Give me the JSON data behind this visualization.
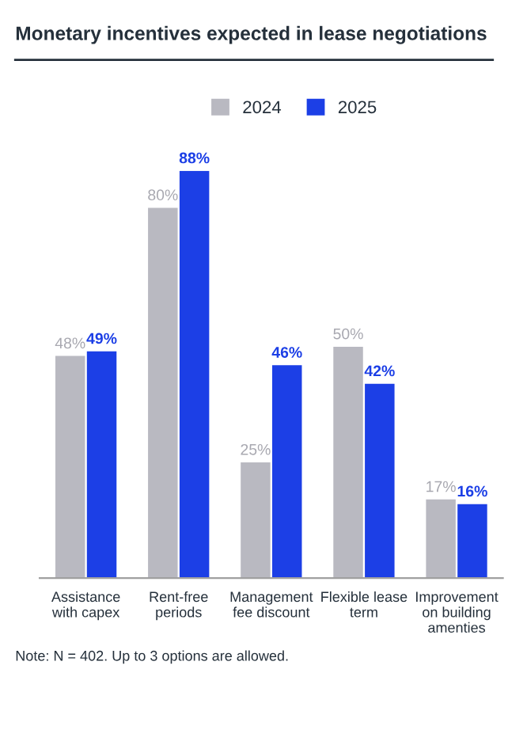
{
  "chart_data": {
    "type": "bar",
    "title": "Monetary incentives expected in lease negotiations",
    "categories": [
      "Assistance\nwith capex",
      "Rent-free\nperiods",
      "Management\nfee discount",
      "Flexible lease\nterm",
      "Improvement\non building\namenties"
    ],
    "series": [
      {
        "name": "2024",
        "color": "#b9b9c1",
        "values": [
          48,
          80,
          25,
          50,
          17
        ],
        "value_labels": [
          "48%",
          "80%",
          "25%",
          "50%",
          "17%"
        ]
      },
      {
        "name": "2025",
        "color": "#1c3fe6",
        "values": [
          49,
          88,
          46,
          42,
          16
        ],
        "value_labels": [
          "49%",
          "88%",
          "46%",
          "42%",
          "16%"
        ]
      }
    ],
    "legend": "top",
    "grid": false,
    "annotations": [
      "Note: N = 402. Up to 3 options are allowed."
    ]
  }
}
